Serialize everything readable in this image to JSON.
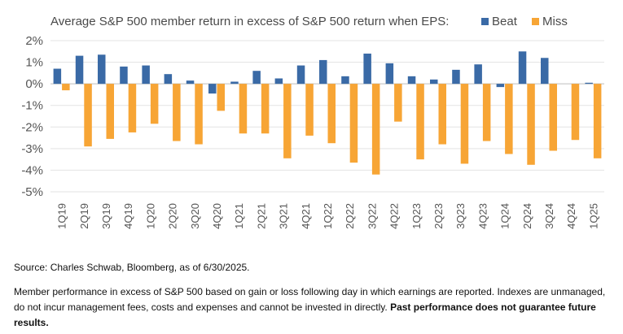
{
  "chart_data": {
    "type": "bar",
    "title": "Average S&P 500 member return in excess of S&P 500 return when EPS:",
    "categories": [
      "1Q19",
      "2Q19",
      "3Q19",
      "4Q19",
      "1Q20",
      "2Q20",
      "3Q20",
      "4Q20",
      "1Q21",
      "2Q21",
      "3Q21",
      "4Q21",
      "1Q22",
      "2Q22",
      "3Q22",
      "4Q22",
      "1Q23",
      "2Q23",
      "3Q23",
      "4Q23",
      "1Q24",
      "2Q24",
      "3Q24",
      "4Q24",
      "1Q25"
    ],
    "series": [
      {
        "name": "Beat",
        "color": "#3a6aa6",
        "values": [
          0.7,
          1.3,
          1.35,
          0.8,
          0.85,
          0.45,
          0.15,
          -0.45,
          0.1,
          0.6,
          0.25,
          0.85,
          1.1,
          0.35,
          1.4,
          0.95,
          0.35,
          0.2,
          0.65,
          0.9,
          -0.15,
          1.5,
          1.2,
          0.0,
          0.05
        ]
      },
      {
        "name": "Miss",
        "color": "#f7a535",
        "values": [
          -0.3,
          -2.9,
          -2.55,
          -2.25,
          -1.85,
          -2.65,
          -2.8,
          -1.25,
          -2.3,
          -2.3,
          -3.45,
          -2.4,
          -2.75,
          -3.65,
          -4.2,
          -1.75,
          -3.5,
          -2.8,
          -3.7,
          -2.65,
          -3.25,
          -3.75,
          -3.1,
          -2.6,
          -3.45
        ]
      }
    ],
    "ylim": [
      -5,
      2
    ],
    "yticks": [
      "2%",
      "1%",
      "0%",
      "-1%",
      "-2%",
      "-3%",
      "-4%",
      "-5%"
    ],
    "ytick_values": [
      2,
      1,
      0,
      -1,
      -2,
      -3,
      -4,
      -5
    ],
    "grid": true,
    "legend_position": "top"
  },
  "colors": {
    "beat": "#3a6aa6",
    "miss": "#f7a535",
    "title": "#4a4a4a",
    "axis_text": "#555555",
    "grid": "#e3e3e3"
  },
  "source": "Source: Charles Schwab, Bloomberg, as of 6/30/2025.",
  "disclaimer": "Member performance in excess of S&P 500 based on gain or loss following day in which earnings are reported. Indexes are unmanaged, do not incur management fees, costs and expenses and cannot be invested in directly.",
  "disclaimer_bold": "Past performance does not guarantee future results."
}
